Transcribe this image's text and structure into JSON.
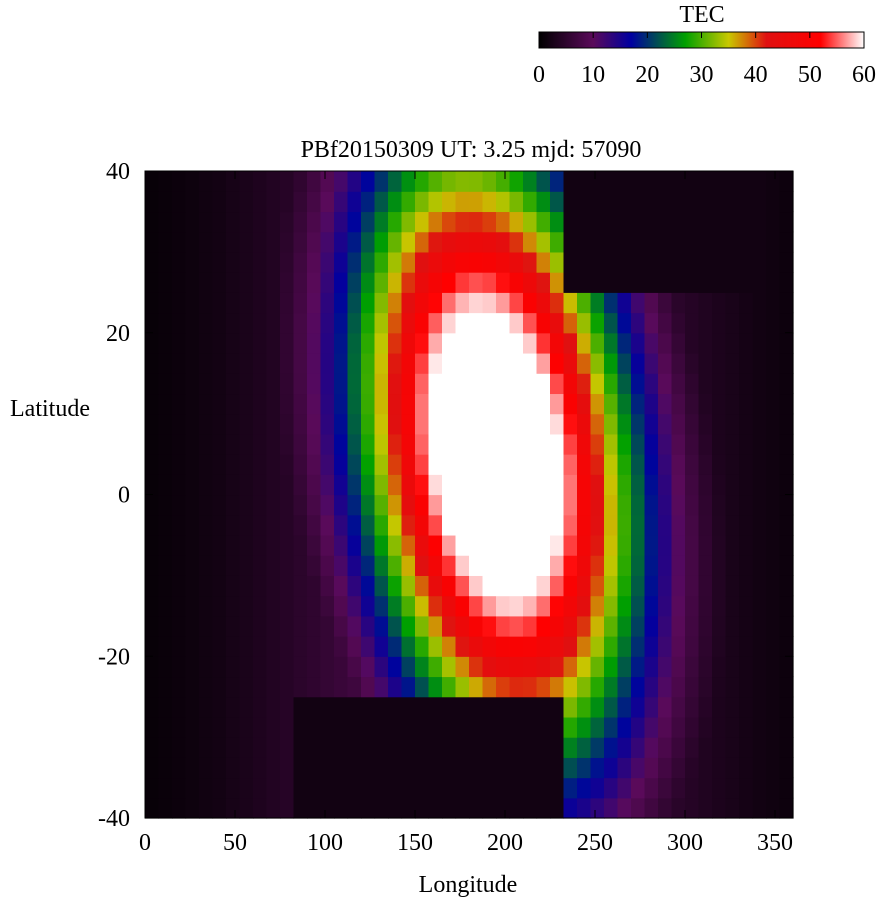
{
  "chart_data": {
    "type": "heatmap",
    "title": "PBf20150309  UT: 3.25  mjd: 57090",
    "xlabel": "Longitude",
    "ylabel": "Latitude",
    "xlim": [
      0,
      360
    ],
    "ylim": [
      -40,
      40
    ],
    "x_ticks": [
      "0",
      "50",
      "100",
      "150",
      "200",
      "250",
      "300",
      "350"
    ],
    "y_ticks": [
      "40",
      "20",
      "0",
      "-20",
      "-40"
    ],
    "grid": false,
    "colorbar": {
      "label": "TEC",
      "range": [
        0,
        60
      ],
      "ticks": [
        "0",
        "10",
        "20",
        "30",
        "40",
        "50",
        "60"
      ],
      "placement": "top-right",
      "stops": [
        {
          "value": 0,
          "color": "#000000"
        },
        {
          "value": 10,
          "color": "#5a0a5a"
        },
        {
          "value": 17,
          "color": "#0000a0"
        },
        {
          "value": 27,
          "color": "#00a000"
        },
        {
          "value": 35,
          "color": "#c8c800"
        },
        {
          "value": 42,
          "color": "#e01010"
        },
        {
          "value": 52,
          "color": "#ff0000"
        },
        {
          "value": 60,
          "color": "#ffffff"
        }
      ]
    },
    "field": {
      "description_of_values": "peak ~60 TEC near lon 195, lat 5; falls to ~0 in corners",
      "peak": {
        "lon": 195,
        "lat": 5,
        "value": 60
      },
      "night_regions": [
        {
          "lon_range": [
            235,
            360
          ],
          "lat_range": [
            25,
            40
          ]
        },
        {
          "lon_range": [
            80,
            235
          ],
          "lat_range": [
            -40,
            -25
          ]
        }
      ]
    }
  }
}
